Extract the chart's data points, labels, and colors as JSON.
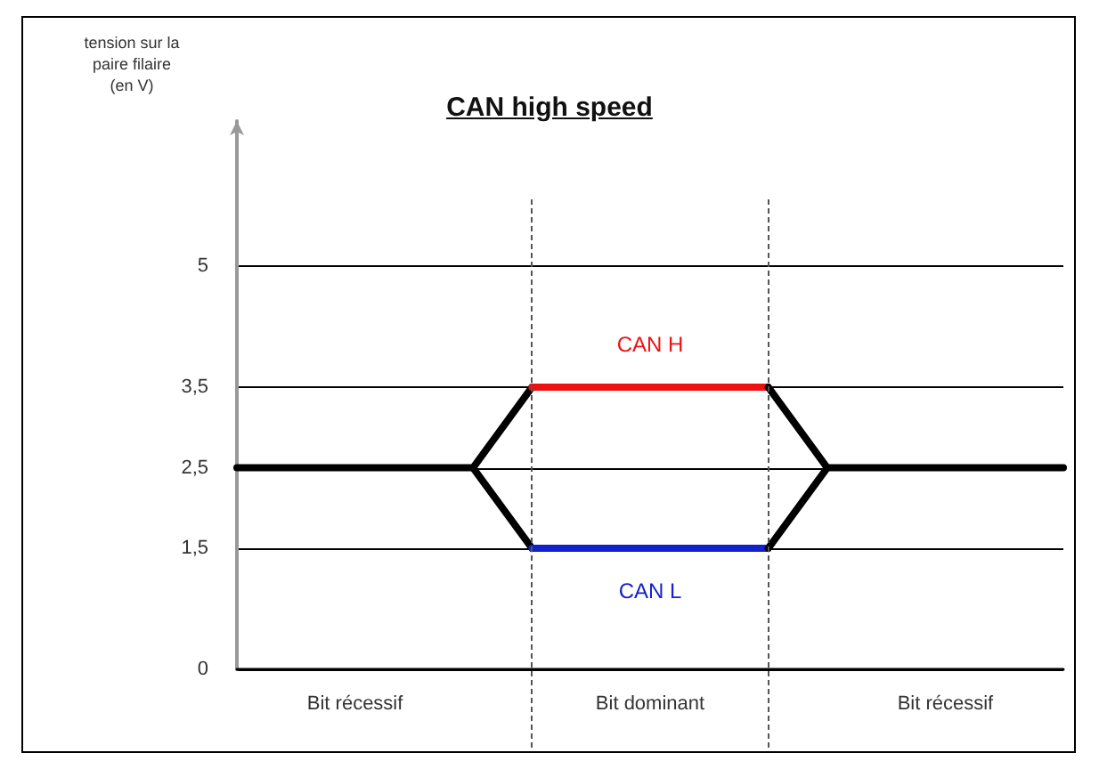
{
  "chart_data": {
    "type": "line",
    "title": "CAN high speed",
    "ylabel": "tension sur la paire filaire (en V)",
    "categories": [
      null,
      null,
      "Bit récessif",
      null,
      null,
      null,
      null,
      "Bit dominant",
      null,
      null,
      null,
      null,
      "Bit récessif",
      null,
      null
    ],
    "ylim": [
      0,
      6.8
    ],
    "yticks": [
      0,
      {
        "value": 1.5,
        "label": "1,5"
      },
      {
        "value": 2.5,
        "label": "2,5"
      },
      {
        "value": 3.5,
        "label": "3,5"
      },
      5
    ],
    "grid": true,
    "legend": false,
    "marker": "none",
    "line_style": "solid",
    "series": [
      {
        "color": "#000000",
        "values": [
          2.5,
          2.5,
          2.5,
          2.5,
          2.5,
          3.5,
          null,
          null,
          null,
          null,
          null,
          null,
          null,
          null,
          null
        ]
      },
      {
        "color": "#000000",
        "values": [
          null,
          null,
          null,
          null,
          2.5,
          1.5,
          null,
          null,
          null,
          null,
          null,
          null,
          null,
          null,
          null
        ]
      },
      {
        "name": "CAN H",
        "color": "#ee1111",
        "values": [
          null,
          null,
          null,
          null,
          null,
          3.5,
          3.5,
          3.5,
          3.5,
          3.5,
          null,
          null,
          null,
          null,
          null
        ]
      },
      {
        "name": "CAN L",
        "color": "#1122cc",
        "values": [
          null,
          null,
          null,
          null,
          null,
          1.5,
          1.5,
          1.5,
          1.5,
          1.5,
          null,
          null,
          null,
          null,
          null
        ]
      },
      {
        "color": "#000000",
        "values": [
          null,
          null,
          null,
          null,
          null,
          null,
          null,
          null,
          null,
          3.5,
          2.5,
          2.5,
          2.5,
          2.5,
          2.5
        ]
      },
      {
        "color": "#000000",
        "values": [
          null,
          null,
          null,
          null,
          null,
          null,
          null,
          null,
          null,
          1.5,
          2.5,
          null,
          null,
          null,
          null
        ]
      }
    ]
  }
}
